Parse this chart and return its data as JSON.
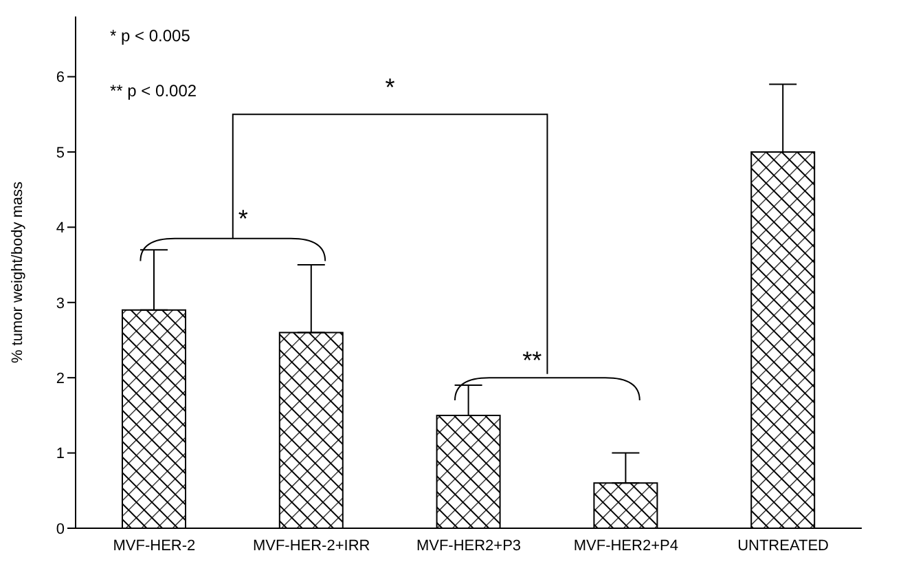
{
  "chart_data": {
    "type": "bar",
    "ylabel": "% tumor weight/body mass",
    "categories": [
      "MVF-HER-2",
      "MVF-HER-2+IRR",
      "MVF-HER2+P3",
      "MVF-HER2+P4",
      "UNTREATED"
    ],
    "values": [
      2.9,
      2.6,
      1.5,
      0.6,
      5.0
    ],
    "errors": [
      [
        2.9,
        3.7
      ],
      [
        2.6,
        3.5
      ],
      [
        1.5,
        1.9
      ],
      [
        0.6,
        1.0
      ],
      [
        5.0,
        5.9
      ]
    ],
    "color": "#000000",
    "ylim": [
      0,
      6.8
    ],
    "yticks": [
      0,
      1,
      2,
      3,
      4,
      5,
      6
    ],
    "annotations": [
      "* p < 0.005",
      "** p < 0.002",
      "*",
      "*",
      "**"
    ]
  }
}
